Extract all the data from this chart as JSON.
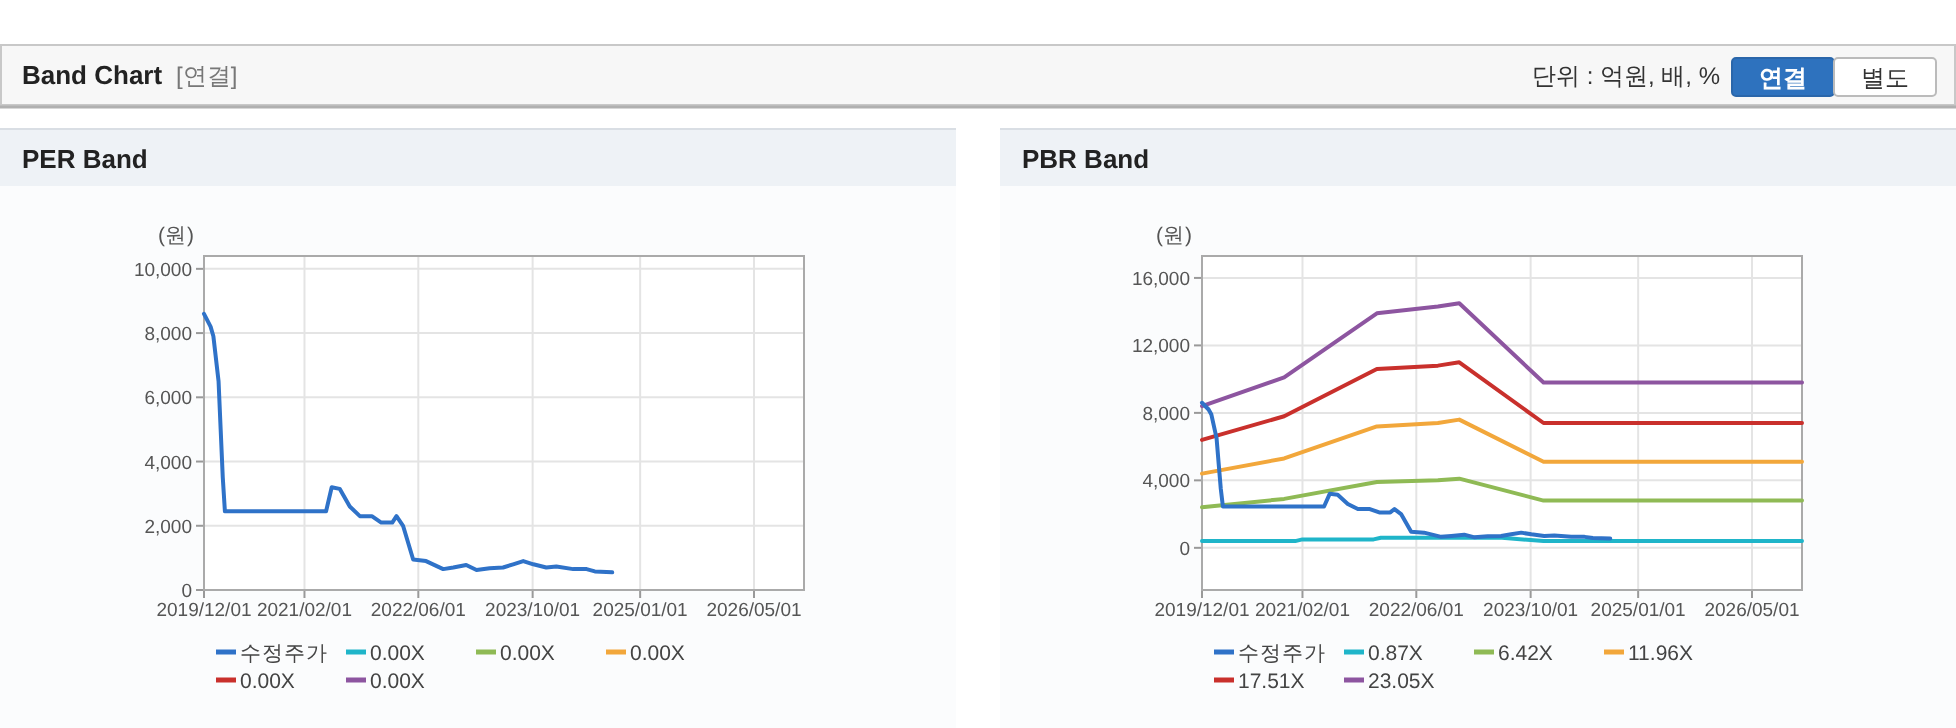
{
  "chart_data": [
    {
      "type": "other",
      "title": "Band Chart",
      "subtitle": "[연결]",
      "annotations": [
        "단위 : 억원, 배, %",
        "연결",
        "별도"
      ]
    },
    {
      "type": "line",
      "title": "PER Band",
      "ylabel": "(원)",
      "grid": true,
      "legend": "bottom",
      "marker": "none",
      "xlim": [
        "2019-12-01",
        "2026-11-30"
      ],
      "ylim": [
        0,
        10400
      ],
      "xticks": [
        {
          "value": "2019-12-01",
          "label": "2019/12/01"
        },
        {
          "value": "2021-02-01",
          "label": "2021/02/01"
        },
        {
          "value": "2022-06-01",
          "label": "2022/06/01"
        },
        {
          "value": "2023-10-01",
          "label": "2023/10/01"
        },
        {
          "value": "2025-01-01",
          "label": "2025/01/01"
        },
        {
          "value": "2026-05-01",
          "label": "2026/05/01"
        }
      ],
      "yticks": [
        0,
        {
          "value": 2000,
          "label": "2,000"
        },
        {
          "value": 4000,
          "label": "4,000"
        },
        {
          "value": 6000,
          "label": "6,000"
        },
        {
          "value": 8000,
          "label": "8,000"
        },
        {
          "value": 10000,
          "label": "10,000"
        }
      ],
      "series": [
        {
          "name": "수정주가",
          "color": "#2f72c8",
          "x": [
            "2019-12-01",
            "2019-12-29",
            "2020-01-10",
            "2020-02-01",
            "2020-02-10",
            "2020-02-19",
            "2020-02-28",
            "2021-05-04",
            "2021-05-28",
            "2021-07-01",
            "2021-08-13",
            "2021-09-25",
            "2021-11-15",
            "2021-12-25",
            "2022-02-10",
            "2022-02-28",
            "2022-03-28",
            "2022-05-10",
            "2022-07-04",
            "2022-09-15",
            "2022-10-28",
            "2022-12-22",
            "2023-02-04",
            "2023-04-01",
            "2023-05-28",
            "2023-07-10",
            "2023-08-22",
            "2023-10-04",
            "2023-11-28",
            "2024-01-10",
            "2024-03-22",
            "2024-05-18",
            "2024-06-22",
            "2024-09-04"
          ],
          "values": [
            8600,
            8200,
            7900,
            6500,
            5000,
            3500,
            2450,
            2450,
            3200,
            3150,
            2600,
            2300,
            2300,
            2100,
            2100,
            2300,
            2000,
            950,
            900,
            650,
            700,
            780,
            620,
            680,
            700,
            800,
            900,
            800,
            700,
            730,
            650,
            650,
            580,
            550
          ]
        },
        {
          "name": "0.00X",
          "color": "#1fb5c9"
        },
        {
          "name": "0.00X",
          "color": "#8fba55"
        },
        {
          "name": "0.00X",
          "color": "#f2a73b"
        },
        {
          "name": "0.00X",
          "color": "#c9302c"
        },
        {
          "name": "0.00X",
          "color": "#8d55a0"
        }
      ]
    },
    {
      "type": "line",
      "title": "PBR Band",
      "ylabel": "(원)",
      "grid": true,
      "legend": "bottom",
      "marker": "none",
      "xlim": [
        "2019-12-01",
        "2026-11-30"
      ],
      "ylim": [
        -2500,
        17300
      ],
      "xticks": [
        {
          "value": "2019-12-01",
          "label": "2019/12/01"
        },
        {
          "value": "2021-02-01",
          "label": "2021/02/01"
        },
        {
          "value": "2022-06-01",
          "label": "2022/06/01"
        },
        {
          "value": "2023-10-01",
          "label": "2023/10/01"
        },
        {
          "value": "2025-01-01",
          "label": "2025/01/01"
        },
        {
          "value": "2026-05-01",
          "label": "2026/05/01"
        }
      ],
      "yticks": [
        0,
        {
          "value": 4000,
          "label": "4,000"
        },
        {
          "value": 8000,
          "label": "8,000"
        },
        {
          "value": 12000,
          "label": "12,000"
        },
        {
          "value": 16000,
          "label": "16,000"
        }
      ],
      "series": [
        {
          "name": "수정주가",
          "color": "#2f72c8",
          "x": [
            "2019-12-01",
            "2019-12-29",
            "2020-01-10",
            "2020-02-01",
            "2020-02-10",
            "2020-02-19",
            "2020-02-28",
            "2021-05-04",
            "2021-05-28",
            "2021-07-01",
            "2021-08-13",
            "2021-09-25",
            "2021-11-15",
            "2021-12-25",
            "2022-02-10",
            "2022-02-28",
            "2022-03-28",
            "2022-05-10",
            "2022-07-04",
            "2022-09-15",
            "2022-10-28",
            "2022-12-22",
            "2023-02-04",
            "2023-04-01",
            "2023-05-28",
            "2023-07-10",
            "2023-08-22",
            "2023-10-04",
            "2023-11-28",
            "2024-01-10",
            "2024-03-22",
            "2024-05-18",
            "2024-06-22",
            "2024-09-04"
          ],
          "values": [
            8600,
            8200,
            7900,
            6500,
            5000,
            3500,
            2450,
            2450,
            3200,
            3150,
            2600,
            2300,
            2300,
            2100,
            2100,
            2300,
            2000,
            950,
            900,
            650,
            700,
            780,
            620,
            680,
            700,
            800,
            900,
            800,
            700,
            730,
            650,
            650,
            580,
            550
          ]
        },
        {
          "name": "0.87X",
          "color": "#1fb5c9",
          "x": [
            "2019-12-01",
            "2021-01-01",
            "2021-02-01",
            "2021-12-01",
            "2022-01-01",
            "2023-06-01",
            "2023-11-25",
            "2026-11-30"
          ],
          "values": [
            400,
            400,
            500,
            500,
            600,
            600,
            400,
            400
          ]
        },
        {
          "name": "6.42X",
          "color": "#8fba55",
          "x": [
            "2019-12-01",
            "2020-11-15",
            "2021-12-15",
            "2022-09-01",
            "2022-12-01",
            "2023-11-25",
            "2026-11-30"
          ],
          "values": [
            2400,
            2900,
            3900,
            4000,
            4100,
            2800,
            2800
          ]
        },
        {
          "name": "11.96X",
          "color": "#f2a73b",
          "x": [
            "2019-12-01",
            "2020-11-15",
            "2021-12-15",
            "2022-09-01",
            "2022-12-01",
            "2023-11-25",
            "2026-11-30"
          ],
          "values": [
            4400,
            5300,
            7200,
            7400,
            7600,
            5100,
            5100
          ]
        },
        {
          "name": "17.51X",
          "color": "#c9302c",
          "x": [
            "2019-12-01",
            "2020-11-15",
            "2021-12-15",
            "2022-09-01",
            "2022-12-01",
            "2023-11-25",
            "2026-11-30"
          ],
          "values": [
            6400,
            7800,
            10600,
            10800,
            11000,
            7400,
            7400
          ]
        },
        {
          "name": "23.05X",
          "color": "#8d55a0",
          "x": [
            "2019-12-01",
            "2020-11-15",
            "2021-12-15",
            "2022-09-01",
            "2022-12-01",
            "2023-11-25",
            "2026-11-30"
          ],
          "values": [
            8400,
            10100,
            13900,
            14300,
            14500,
            9800,
            9800
          ]
        }
      ]
    }
  ]
}
